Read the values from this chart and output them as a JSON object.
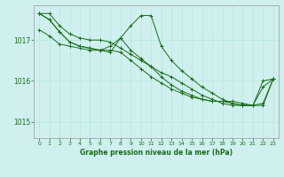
{
  "background_color": "#cff0ee",
  "grid_color": "#b8e8e4",
  "line_color": "#1a6b1a",
  "text_color": "#1a6b1a",
  "xlabel": "Graphe pression niveau de la mer (hPa)",
  "yticks": [
    1015,
    1016,
    1017
  ],
  "xticks": [
    0,
    1,
    2,
    3,
    4,
    5,
    6,
    7,
    8,
    9,
    10,
    11,
    12,
    13,
    14,
    15,
    16,
    17,
    18,
    19,
    20,
    21,
    22,
    23
  ],
  "ylim": [
    1014.6,
    1017.85
  ],
  "xlim": [
    -0.5,
    23.5
  ],
  "series": [
    [
      1017.65,
      1017.65,
      1017.35,
      1017.15,
      1017.05,
      1017.0,
      1017.0,
      1016.95,
      1016.8,
      1016.65,
      1016.5,
      1016.35,
      1016.2,
      1016.1,
      1015.95,
      1015.8,
      1015.65,
      1015.55,
      1015.45,
      1015.4,
      1015.4,
      1015.4,
      1015.45,
      1016.05
    ],
    [
      1017.25,
      1017.1,
      1016.9,
      1016.85,
      1016.8,
      1016.75,
      1016.75,
      1016.7,
      1017.05,
      1017.35,
      1017.6,
      1017.6,
      1016.85,
      1016.5,
      1016.25,
      1016.05,
      1015.85,
      1015.7,
      1015.55,
      1015.45,
      1015.4,
      1015.4,
      1015.85,
      1016.05
    ],
    [
      1017.65,
      1017.5,
      1017.2,
      1016.95,
      1016.85,
      1016.8,
      1016.75,
      1016.85,
      1017.05,
      1016.75,
      1016.55,
      1016.35,
      1016.1,
      1015.9,
      1015.75,
      1015.65,
      1015.55,
      1015.5,
      1015.5,
      1015.5,
      1015.45,
      1015.4,
      1016.0,
      1016.05
    ],
    [
      1017.65,
      1017.5,
      1017.2,
      1016.95,
      1016.85,
      1016.8,
      1016.75,
      1016.75,
      1016.7,
      1016.5,
      1016.3,
      1016.1,
      1015.95,
      1015.8,
      1015.7,
      1015.6,
      1015.55,
      1015.5,
      1015.5,
      1015.45,
      1015.4,
      1015.4,
      1015.4,
      1016.05
    ]
  ]
}
